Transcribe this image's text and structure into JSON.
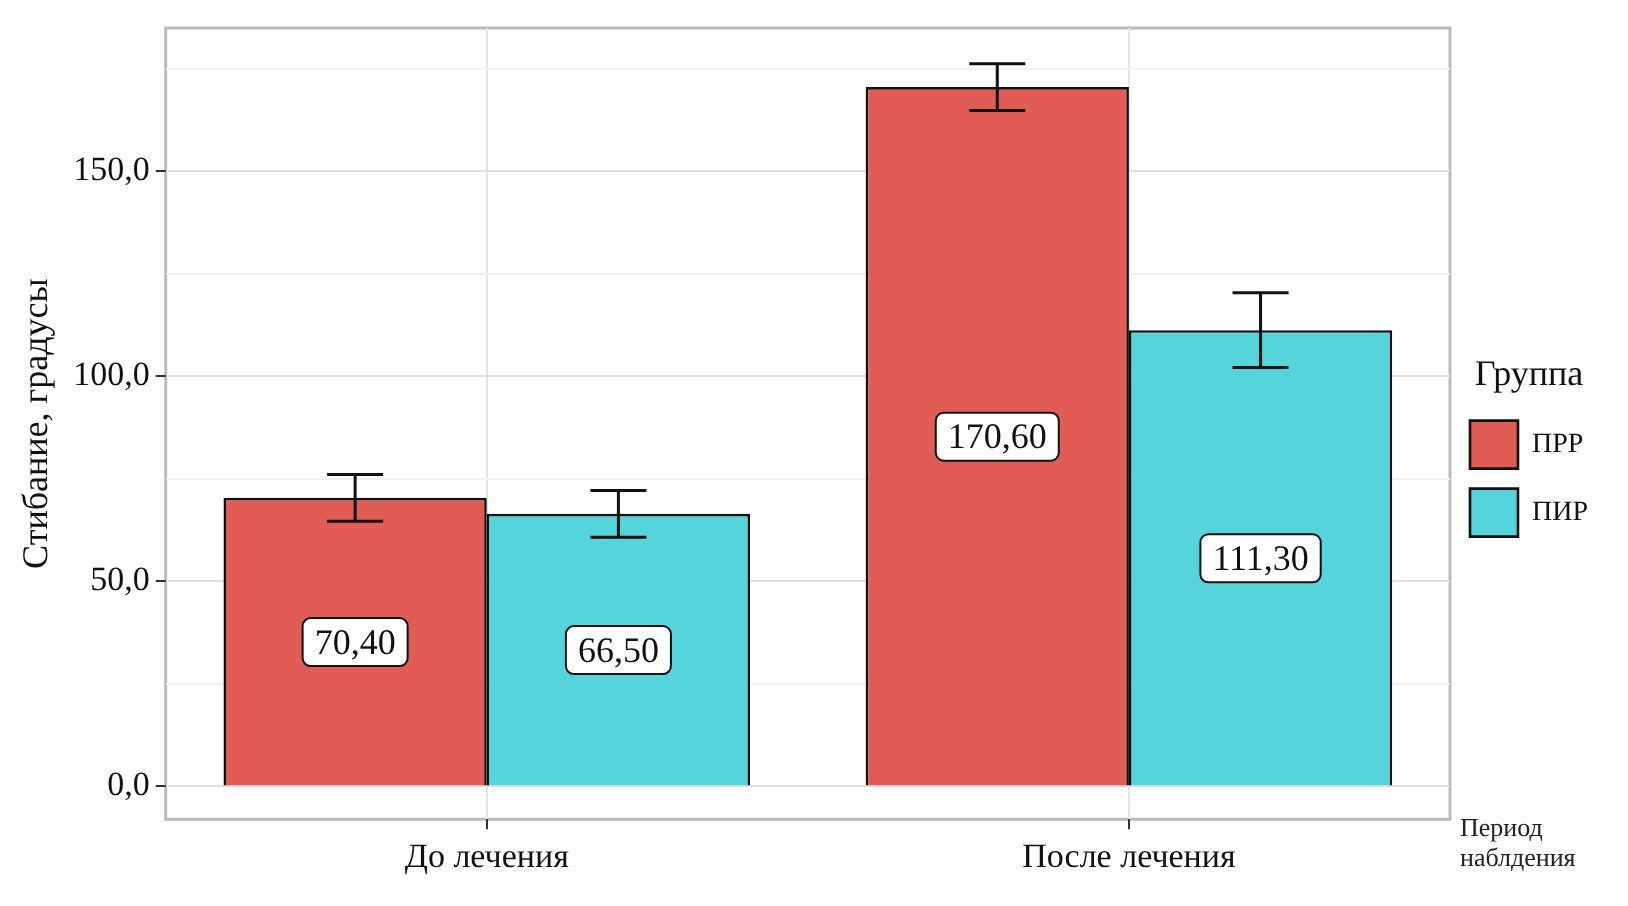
{
  "chart_data": {
    "type": "bar",
    "ylabel": "Стибание, градусы",
    "xlabel": "Период наблдения",
    "legend_title": "Группа",
    "legend": "right",
    "grid": true,
    "categories": [
      "До лечения",
      "После лечения"
    ],
    "series": [
      {
        "name": "ПРР",
        "color": "#e05c55",
        "values": [
          70.4,
          170.6
        ],
        "errors": [
          5.7,
          5.7
        ],
        "value_labels": [
          "70,40",
          "170,60"
        ]
      },
      {
        "name": "ПИР",
        "color": "#56d4dc",
        "values": [
          66.5,
          111.3
        ],
        "errors": [
          5.7,
          9.1
        ],
        "value_labels": [
          "66,50",
          "111,30"
        ]
      }
    ],
    "ylim": [
      -8,
      185
    ],
    "yticks": [
      {
        "value": 0,
        "label": "0,0"
      },
      {
        "value": 25,
        "label": null
      },
      {
        "value": 50,
        "label": "50,0"
      },
      {
        "value": 75,
        "label": null
      },
      {
        "value": 100,
        "label": "100,0"
      },
      {
        "value": 125,
        "label": null
      },
      {
        "value": 150,
        "label": "150,0"
      },
      {
        "value": 175,
        "label": null
      }
    ]
  }
}
